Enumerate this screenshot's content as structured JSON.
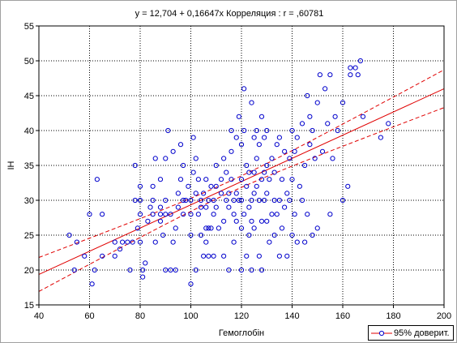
{
  "chart_data": {
    "type": "scatter",
    "title": "y = 12,704 + 0,16647x  Корреляция : r = ,60781",
    "xlabel": "Гемоглобін",
    "ylabel": "IH",
    "xlim": [
      40,
      200
    ],
    "ylim": [
      15,
      55
    ],
    "x_ticks": [
      40,
      60,
      80,
      100,
      120,
      140,
      160,
      180,
      200
    ],
    "y_ticks": [
      15,
      20,
      25,
      30,
      35,
      40,
      45,
      50,
      55
    ],
    "grid": true,
    "legend_position": "bottom-right",
    "legend": [
      "95% доверит."
    ],
    "regression": {
      "intercept": 12.704,
      "slope": 0.16647,
      "r": 0.60781
    },
    "colors": {
      "points": "#0000cc",
      "fit_line": "#e00000",
      "grid": "#000000"
    },
    "points": [
      [
        52,
        25
      ],
      [
        54,
        20
      ],
      [
        55,
        24
      ],
      [
        58,
        22
      ],
      [
        60,
        28
      ],
      [
        61,
        18
      ],
      [
        62,
        20
      ],
      [
        63,
        33
      ],
      [
        65,
        22
      ],
      [
        65,
        28
      ],
      [
        70,
        22
      ],
      [
        70,
        24
      ],
      [
        72,
        23
      ],
      [
        73,
        24
      ],
      [
        75,
        24
      ],
      [
        76,
        20
      ],
      [
        77,
        24
      ],
      [
        78,
        30
      ],
      [
        78,
        35
      ],
      [
        79,
        26
      ],
      [
        80,
        24
      ],
      [
        80,
        28
      ],
      [
        80,
        30
      ],
      [
        80,
        32
      ],
      [
        81,
        19
      ],
      [
        81,
        20
      ],
      [
        82,
        21
      ],
      [
        83,
        27
      ],
      [
        84,
        29
      ],
      [
        85,
        28
      ],
      [
        85,
        30
      ],
      [
        85,
        32
      ],
      [
        86,
        24
      ],
      [
        86,
        36
      ],
      [
        88,
        27
      ],
      [
        88,
        28
      ],
      [
        88,
        29
      ],
      [
        88,
        33
      ],
      [
        89,
        25
      ],
      [
        90,
        20
      ],
      [
        90,
        28
      ],
      [
        90,
        30
      ],
      [
        90,
        36
      ],
      [
        91,
        40
      ],
      [
        92,
        20
      ],
      [
        92,
        28
      ],
      [
        93,
        24
      ],
      [
        93,
        37
      ],
      [
        94,
        20
      ],
      [
        94,
        26
      ],
      [
        95,
        29
      ],
      [
        95,
        31
      ],
      [
        96,
        33
      ],
      [
        96,
        38
      ],
      [
        97,
        28
      ],
      [
        97,
        30
      ],
      [
        97,
        35
      ],
      [
        98,
        30
      ],
      [
        99,
        32
      ],
      [
        100,
        18
      ],
      [
        100,
        25
      ],
      [
        100,
        28
      ],
      [
        100,
        30
      ],
      [
        101,
        34
      ],
      [
        101,
        39
      ],
      [
        102,
        20
      ],
      [
        102,
        31
      ],
      [
        102,
        36
      ],
      [
        103,
        28
      ],
      [
        103,
        33
      ],
      [
        104,
        25
      ],
      [
        104,
        29
      ],
      [
        104,
        30
      ],
      [
        105,
        22
      ],
      [
        105,
        31
      ],
      [
        106,
        24
      ],
      [
        106,
        26
      ],
      [
        106,
        29
      ],
      [
        106,
        33
      ],
      [
        107,
        22
      ],
      [
        107,
        26
      ],
      [
        107,
        30
      ],
      [
        108,
        26
      ],
      [
        108,
        32
      ],
      [
        109,
        22
      ],
      [
        109,
        28
      ],
      [
        109,
        30
      ],
      [
        110,
        29
      ],
      [
        110,
        32
      ],
      [
        110,
        35
      ],
      [
        111,
        26
      ],
      [
        112,
        31
      ],
      [
        112,
        33
      ],
      [
        113,
        22
      ],
      [
        113,
        27
      ],
      [
        113,
        36
      ],
      [
        114,
        30
      ],
      [
        114,
        34
      ],
      [
        115,
        20
      ],
      [
        115,
        29
      ],
      [
        115,
        31
      ],
      [
        116,
        33
      ],
      [
        116,
        37
      ],
      [
        116,
        40
      ],
      [
        117,
        24
      ],
      [
        117,
        28
      ],
      [
        117,
        30
      ],
      [
        118,
        27
      ],
      [
        118,
        31
      ],
      [
        118,
        39
      ],
      [
        119,
        30
      ],
      [
        119,
        42
      ],
      [
        120,
        20
      ],
      [
        120,
        26
      ],
      [
        120,
        30
      ],
      [
        120,
        33
      ],
      [
        120,
        38
      ],
      [
        121,
        28
      ],
      [
        121,
        40
      ],
      [
        121,
        46
      ],
      [
        122,
        22
      ],
      [
        122,
        32
      ],
      [
        122,
        35
      ],
      [
        123,
        25
      ],
      [
        123,
        29
      ],
      [
        123,
        34
      ],
      [
        124,
        20
      ],
      [
        124,
        27
      ],
      [
        124,
        30
      ],
      [
        124,
        44
      ],
      [
        125,
        26
      ],
      [
        125,
        31
      ],
      [
        125,
        34
      ],
      [
        125,
        39
      ],
      [
        126,
        32
      ],
      [
        126,
        36
      ],
      [
        126,
        40
      ],
      [
        127,
        22
      ],
      [
        127,
        30
      ],
      [
        127,
        38
      ],
      [
        128,
        20
      ],
      [
        128,
        27
      ],
      [
        128,
        33
      ],
      [
        128,
        42
      ],
      [
        129,
        30
      ],
      [
        129,
        34
      ],
      [
        129,
        39
      ],
      [
        130,
        27
      ],
      [
        130,
        31
      ],
      [
        130,
        35
      ],
      [
        130,
        40
      ],
      [
        131,
        24
      ],
      [
        131,
        33
      ],
      [
        132,
        28
      ],
      [
        132,
        36
      ],
      [
        133,
        25
      ],
      [
        133,
        30
      ],
      [
        133,
        34
      ],
      [
        134,
        28
      ],
      [
        134,
        38
      ],
      [
        135,
        22
      ],
      [
        135,
        30
      ],
      [
        135,
        39
      ],
      [
        136,
        26
      ],
      [
        136,
        33
      ],
      [
        137,
        29
      ],
      [
        137,
        37
      ],
      [
        138,
        22
      ],
      [
        138,
        31
      ],
      [
        139,
        30
      ],
      [
        139,
        36
      ],
      [
        140,
        25
      ],
      [
        140,
        33
      ],
      [
        140,
        40
      ],
      [
        141,
        28
      ],
      [
        141,
        37
      ],
      [
        142,
        24
      ],
      [
        142,
        39
      ],
      [
        143,
        32
      ],
      [
        144,
        30
      ],
      [
        144,
        41
      ],
      [
        145,
        24
      ],
      [
        145,
        35
      ],
      [
        146,
        28
      ],
      [
        146,
        45
      ],
      [
        147,
        38
      ],
      [
        147,
        42
      ],
      [
        148,
        25
      ],
      [
        148,
        40
      ],
      [
        149,
        36
      ],
      [
        150,
        26
      ],
      [
        150,
        44
      ],
      [
        151,
        48
      ],
      [
        152,
        37
      ],
      [
        153,
        46
      ],
      [
        154,
        41
      ],
      [
        155,
        28
      ],
      [
        155,
        48
      ],
      [
        156,
        36
      ],
      [
        157,
        42
      ],
      [
        158,
        40
      ],
      [
        160,
        30
      ],
      [
        160,
        44
      ],
      [
        162,
        32
      ],
      [
        163,
        48
      ],
      [
        163,
        49
      ],
      [
        165,
        49
      ],
      [
        166,
        48
      ],
      [
        167,
        50
      ],
      [
        168,
        42
      ],
      [
        175,
        39
      ],
      [
        178,
        41
      ]
    ]
  }
}
